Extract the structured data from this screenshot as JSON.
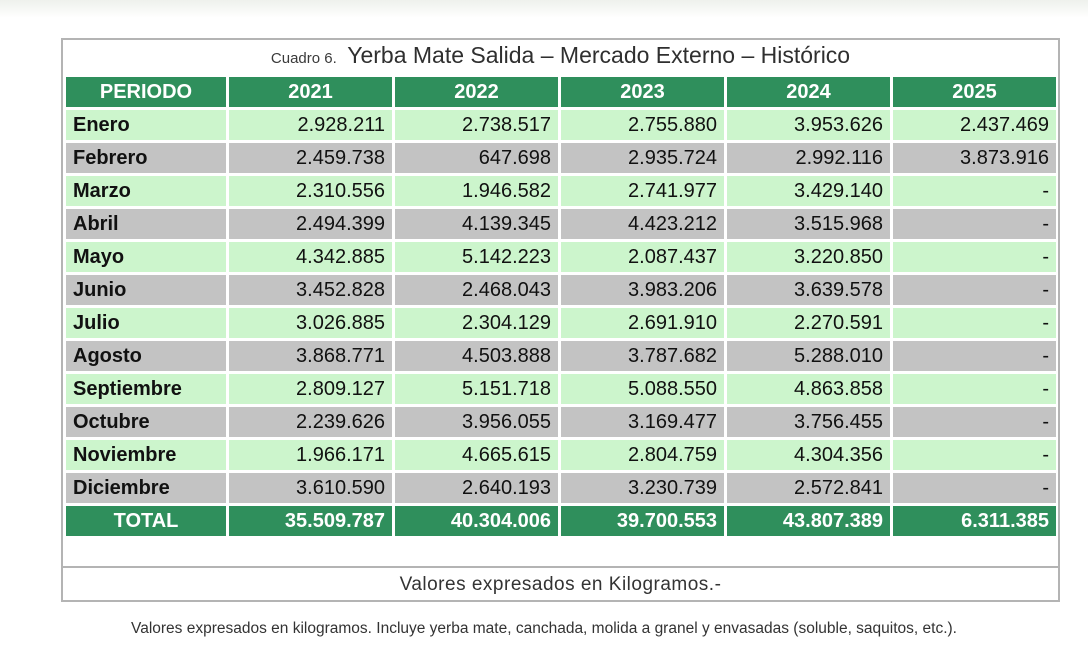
{
  "caption": {
    "label": "Cuadro 6.",
    "title": "Yerba Mate Salida  – Mercado Externo – Histórico"
  },
  "table": {
    "headers": [
      "PERIODO",
      "2021",
      "2022",
      "2023",
      "2024",
      "2025"
    ],
    "rows": [
      {
        "month": "Enero",
        "values": [
          "2.928.211",
          "2.738.517",
          "2.755.880",
          "3.953.626",
          "2.437.469"
        ]
      },
      {
        "month": "Febrero",
        "values": [
          "2.459.738",
          "647.698",
          "2.935.724",
          "2.992.116",
          "3.873.916"
        ]
      },
      {
        "month": "Marzo",
        "values": [
          "2.310.556",
          "1.946.582",
          "2.741.977",
          "3.429.140",
          "-"
        ]
      },
      {
        "month": "Abril",
        "values": [
          "2.494.399",
          "4.139.345",
          "4.423.212",
          "3.515.968",
          "-"
        ]
      },
      {
        "month": "Mayo",
        "values": [
          "4.342.885",
          "5.142.223",
          "2.087.437",
          "3.220.850",
          "-"
        ]
      },
      {
        "month": "Junio",
        "values": [
          "3.452.828",
          "2.468.043",
          "3.983.206",
          "3.639.578",
          "-"
        ]
      },
      {
        "month": "Julio",
        "values": [
          "3.026.885",
          "2.304.129",
          "2.691.910",
          "2.270.591",
          "-"
        ]
      },
      {
        "month": "Agosto",
        "values": [
          "3.868.771",
          "4.503.888",
          "3.787.682",
          "5.288.010",
          "-"
        ]
      },
      {
        "month": "Septiembre",
        "values": [
          "2.809.127",
          "5.151.718",
          "5.088.550",
          "4.863.858",
          "-"
        ]
      },
      {
        "month": "Octubre",
        "values": [
          "2.239.626",
          "3.956.055",
          "3.169.477",
          "3.756.455",
          "-"
        ]
      },
      {
        "month": "Noviembre",
        "values": [
          "1.966.171",
          "4.665.615",
          "2.804.759",
          "4.304.356",
          "-"
        ]
      },
      {
        "month": "Diciembre",
        "values": [
          "3.610.590",
          "2.640.193",
          "3.230.739",
          "2.572.841",
          "-"
        ]
      }
    ],
    "total": {
      "label": "TOTAL",
      "values": [
        "35.509.787",
        "40.304.006",
        "39.700.553",
        "43.807.389",
        "6.311.385"
      ]
    }
  },
  "units_note": "Valores expresados en Kilogramos.-",
  "footnote": "Valores expresados en kilogramos. Incluye yerba mate, canchada, molida a granel y envasadas (soluble, saquitos, etc.).",
  "colors": {
    "header_green": "#2f8f5c",
    "row_light": "#ccf5cc",
    "row_dark": "#c3c3c3"
  }
}
